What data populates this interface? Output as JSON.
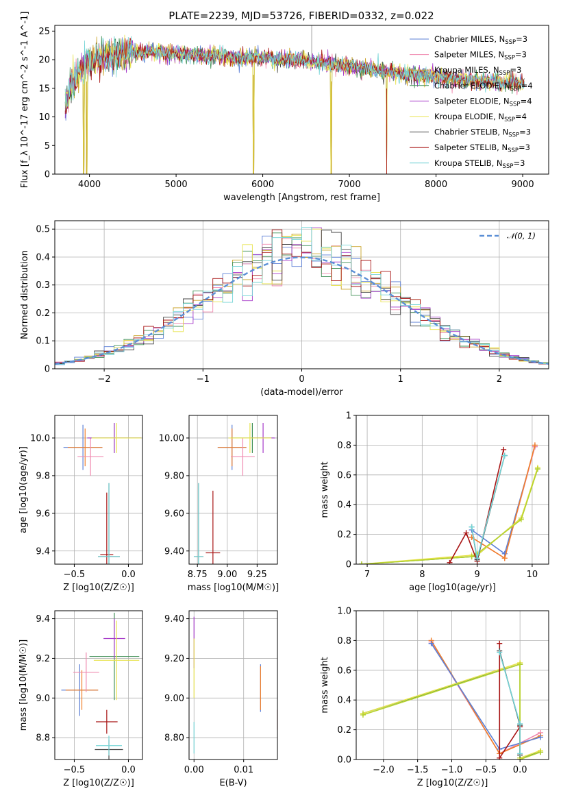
{
  "figure_title": "PLATE=2239, MJD=53726, FIBERID=0332, z=0.022",
  "colors": {
    "Chabrier MILES": "#5b7fd6",
    "Salpeter MILES": "#f08ab0",
    "Kroupa MILES": "#c9a227",
    "Chabrier ELODIE": "#3f8f55",
    "Salpeter ELODIE": "#a63ac9",
    "Kroupa ELODIE": "#e8e34d",
    "Chabrier STELIB": "#444444",
    "Salpeter STELIB": "#a81414",
    "Kroupa STELIB": "#74d4d6",
    "gaussian": "#5b8fd6",
    "extra_orange": "#f07f2a",
    "extra_lime": "#b7d22c"
  },
  "chart_data": [
    {
      "id": "spectrum",
      "type": "line",
      "title": "PLATE=2239, MJD=53726, FIBERID=0332, z=0.022",
      "xlabel": "wavelength [Angstrom, rest frame]",
      "ylabel": "Flux [f_λ 10^-17 erg cm^-2 s^-1 A^-1]",
      "xlim": [
        3600,
        9300
      ],
      "ylim": [
        0,
        26
      ],
      "xticks": [
        4000,
        5000,
        6000,
        7000,
        8000,
        9000
      ],
      "yticks": [
        0,
        5,
        10,
        15,
        20,
        25
      ],
      "grid": false,
      "legend_position": "top-right",
      "legend": [
        {
          "model": "Chabrier MILES",
          "nssp": "3"
        },
        {
          "model": "Salpeter MILES",
          "nssp": "3"
        },
        {
          "model": "Kroupa MILES",
          "nssp": "3"
        },
        {
          "model": "Chabrier ELODIE",
          "nssp": "4"
        },
        {
          "model": "Salpeter ELODIE",
          "nssp": "4"
        },
        {
          "model": "Kroupa ELODIE",
          "nssp": "4"
        },
        {
          "model": "Chabrier STELIB",
          "nssp": "3"
        },
        {
          "model": "Salpeter STELIB",
          "nssp": "3"
        },
        {
          "model": "Kroupa STELIB",
          "nssp": "3"
        }
      ],
      "continuum": {
        "x": [
          3700,
          3780,
          3850,
          3950,
          4050,
          4150,
          4300,
          4500,
          4700,
          5000,
          5300,
          5600,
          6000,
          6500,
          7000,
          7500,
          8000,
          8500,
          9000
        ],
        "y": [
          10,
          15,
          17,
          19,
          20,
          20.5,
          20.8,
          21.2,
          21.3,
          21.0,
          20.8,
          20.6,
          20.3,
          19.8,
          18.8,
          17.8,
          17.0,
          16.3,
          15.8
        ]
      },
      "dips": [
        {
          "x": 3935,
          "y": 0
        },
        {
          "x": 3969,
          "y": 0
        },
        {
          "x": 5893,
          "y": 0
        },
        {
          "x": 6790,
          "y": 0
        },
        {
          "x": 7430,
          "y": 0
        }
      ],
      "peaks": [
        {
          "x": 6565,
          "y": 26
        }
      ]
    },
    {
      "id": "residuals",
      "type": "histogram",
      "xlabel": "(data-model)/error",
      "ylabel": "Normed distribution",
      "xlim": [
        -2.5,
        2.5
      ],
      "ylim": [
        0,
        0.53
      ],
      "xticks": [
        -2,
        -1,
        0,
        1,
        2
      ],
      "yticks": [
        0.0,
        0.1,
        0.2,
        0.3,
        0.4,
        0.5
      ],
      "grid": true,
      "bin_width": 0.1,
      "legend_position": "top-right",
      "legend": [
        {
          "label": "𝒩(0, 1)"
        }
      ],
      "reference_curve": {
        "name": "𝒩(0, 1)",
        "type": "gaussian",
        "mu": 0,
        "sigma": 1
      }
    },
    {
      "id": "age-vs-metallicity",
      "type": "errorbar",
      "xlabel": "Z [log10(Z/Z☉)]",
      "ylabel": "age [log10(age/yr)]",
      "xlim": [
        -0.68,
        0.13
      ],
      "ylim": [
        9.33,
        10.12
      ],
      "xticks": [
        -0.5,
        0.0
      ],
      "yticks": [
        9.4,
        9.6,
        9.8,
        10.0
      ],
      "grid": true,
      "points": [
        {
          "x": -0.42,
          "y": 9.95,
          "xerr": 0.18,
          "yerr": 0.12,
          "color": "#5b7fd6"
        },
        {
          "x": -0.4,
          "y": 9.95,
          "xerr": 0.16,
          "yerr": 0.1,
          "color": "#f07f2a"
        },
        {
          "x": -0.35,
          "y": 9.9,
          "xerr": 0.12,
          "yerr": 0.1,
          "color": "#f08ab0"
        },
        {
          "x": -0.13,
          "y": 10.0,
          "xerr": 0.25,
          "yerr": 0.08,
          "color": "#3f8f55"
        },
        {
          "x": -0.13,
          "y": 10.0,
          "xerr": 0.25,
          "yerr": 0.08,
          "color": "#a63ac9"
        },
        {
          "x": -0.11,
          "y": 10.0,
          "xerr": 0.23,
          "yerr": 0.08,
          "color": "#e8e34d"
        },
        {
          "x": -0.2,
          "y": 9.38,
          "xerr": 0.06,
          "yerr": 0.33,
          "color": "#a81414"
        },
        {
          "x": -0.18,
          "y": 9.37,
          "xerr": 0.1,
          "yerr": 0.39,
          "color": "#444444"
        },
        {
          "x": -0.18,
          "y": 9.37,
          "xerr": 0.1,
          "yerr": 0.39,
          "color": "#74d4d6"
        }
      ]
    },
    {
      "id": "age-vs-mass",
      "type": "errorbar",
      "xlabel": "mass [log10(M/M☉)]",
      "ylabel": "",
      "xlim": [
        8.68,
        9.42
      ],
      "ylim": [
        9.33,
        10.12
      ],
      "xticks": [
        8.75,
        9.0,
        9.25
      ],
      "yticks": [
        9.4,
        9.6,
        9.8,
        10.0
      ],
      "grid": true,
      "points": [
        {
          "x": 9.04,
          "y": 9.95,
          "xerr": 0.12,
          "yerr": 0.12,
          "color": "#5b7fd6"
        },
        {
          "x": 9.04,
          "y": 9.95,
          "xerr": 0.12,
          "yerr": 0.1,
          "color": "#f07f2a"
        },
        {
          "x": 9.13,
          "y": 9.9,
          "xerr": 0.1,
          "yerr": 0.1,
          "color": "#f08ab0"
        },
        {
          "x": 9.21,
          "y": 10.0,
          "xerr": 0.18,
          "yerr": 0.08,
          "color": "#3f8f55"
        },
        {
          "x": 9.3,
          "y": 10.0,
          "xerr": 0.1,
          "yerr": 0.08,
          "color": "#a63ac9"
        },
        {
          "x": 9.19,
          "y": 10.0,
          "xerr": 0.18,
          "yerr": 0.08,
          "color": "#e8e34d"
        },
        {
          "x": 8.88,
          "y": 9.39,
          "xerr": 0.06,
          "yerr": 0.33,
          "color": "#a81414"
        },
        {
          "x": 8.76,
          "y": 9.37,
          "xerr": 0.04,
          "yerr": 0.39,
          "color": "#444444"
        },
        {
          "x": 8.76,
          "y": 9.37,
          "xerr": 0.04,
          "yerr": 0.39,
          "color": "#74d4d6"
        }
      ]
    },
    {
      "id": "mass-weight-vs-age",
      "type": "line",
      "xlabel": "age [log10(age/yr)]",
      "ylabel": "mass weight",
      "xlim": [
        6.8,
        10.3
      ],
      "ylim": [
        0,
        1.0
      ],
      "xticks": [
        7,
        8,
        9,
        10
      ],
      "yticks": [
        0.0,
        0.2,
        0.4,
        0.6,
        0.8,
        1.0
      ],
      "grid": true,
      "series": [
        {
          "color": "#5b7fd6",
          "x": [
            8.9,
            9.5,
            10.05
          ],
          "y": [
            0.23,
            0.07,
            0.79
          ]
        },
        {
          "color": "#f08ab0",
          "x": [
            8.9,
            9.5,
            10.05
          ],
          "y": [
            0.18,
            0.04,
            0.79
          ]
        },
        {
          "color": "#f07f2a",
          "x": [
            8.9,
            9.5,
            10.05
          ],
          "y": [
            0.18,
            0.04,
            0.8
          ]
        },
        {
          "color": "#3f8f55",
          "x": [
            6.9,
            8.9,
            9.0,
            9.8,
            10.1
          ],
          "y": [
            0.0,
            0.05,
            0.06,
            0.31,
            0.64
          ]
        },
        {
          "color": "#e8e34d",
          "x": [
            6.9,
            8.9,
            9.0,
            9.8,
            10.1
          ],
          "y": [
            0.0,
            0.06,
            0.06,
            0.31,
            0.65
          ]
        },
        {
          "color": "#b7d22c",
          "x": [
            6.9,
            8.9,
            9.0,
            9.8,
            10.1
          ],
          "y": [
            0.0,
            0.05,
            0.07,
            0.3,
            0.64
          ]
        },
        {
          "color": "#a81414",
          "x": [
            8.5,
            8.8,
            9.0,
            9.48
          ],
          "y": [
            0.01,
            0.21,
            0.02,
            0.77
          ]
        },
        {
          "color": "#444444",
          "x": [
            8.9,
            9.0,
            9.5
          ],
          "y": [
            0.25,
            0.03,
            0.73
          ]
        },
        {
          "color": "#74d4d6",
          "x": [
            8.9,
            9.0,
            9.5
          ],
          "y": [
            0.25,
            0.04,
            0.73
          ]
        }
      ]
    },
    {
      "id": "mass-vs-metallicity",
      "type": "errorbar",
      "xlabel": "Z [log10(Z/Z☉)]",
      "ylabel": "mass [log10(M/M☉)]",
      "xlim": [
        -0.68,
        0.13
      ],
      "ylim": [
        8.69,
        9.44
      ],
      "xticks": [
        -0.5,
        0.0
      ],
      "yticks": [
        8.8,
        9.0,
        9.2,
        9.4
      ],
      "grid": true,
      "points": [
        {
          "x": -0.45,
          "y": 9.04,
          "xerr": 0.17,
          "yerr": 0.13,
          "color": "#5b7fd6"
        },
        {
          "x": -0.43,
          "y": 9.04,
          "xerr": 0.15,
          "yerr": 0.1,
          "color": "#f07f2a"
        },
        {
          "x": -0.39,
          "y": 9.13,
          "xerr": 0.12,
          "yerr": 0.1,
          "color": "#f08ab0"
        },
        {
          "x": -0.13,
          "y": 9.21,
          "xerr": 0.23,
          "yerr": 0.22,
          "color": "#3f8f55"
        },
        {
          "x": -0.13,
          "y": 9.3,
          "xerr": 0.1,
          "yerr": 0.1,
          "color": "#a63ac9"
        },
        {
          "x": -0.11,
          "y": 9.19,
          "xerr": 0.21,
          "yerr": 0.2,
          "color": "#e8e34d"
        },
        {
          "x": -0.2,
          "y": 8.88,
          "xerr": 0.1,
          "yerr": 0.06,
          "color": "#a81414"
        },
        {
          "x": -0.18,
          "y": 8.74,
          "xerr": 0.13,
          "yerr": 0.05,
          "color": "#444444"
        },
        {
          "x": -0.18,
          "y": 8.76,
          "xerr": 0.12,
          "yerr": 0.05,
          "color": "#74d4d6"
        }
      ]
    },
    {
      "id": "mass-vs-ebv",
      "type": "errorbar",
      "xlabel": "E(B-V)",
      "ylabel": "",
      "xlim": [
        -0.001,
        0.0168
      ],
      "ylim": [
        8.69,
        9.44
      ],
      "xticks": [
        0.0,
        0.01
      ],
      "yticks": [
        8.8,
        9.0,
        9.2,
        9.4
      ],
      "grid": true,
      "points": [
        {
          "x": 0.0,
          "y": 9.28,
          "xerr": 0,
          "yerr": 0.13,
          "color": "#a63ac9"
        },
        {
          "x": 0.0,
          "y": 9.15,
          "xerr": 0,
          "yerr": 0.15,
          "color": "#e8e34d"
        },
        {
          "x": 0.0,
          "y": 8.8,
          "xerr": 0,
          "yerr": 0.08,
          "color": "#74d4d6"
        },
        {
          "x": 0.0134,
          "y": 9.05,
          "xerr": 0,
          "yerr": 0.12,
          "color": "#5b7fd6"
        },
        {
          "x": 0.0134,
          "y": 9.05,
          "xerr": 0,
          "yerr": 0.11,
          "color": "#f07f2a"
        },
        {
          "x": 0.0168,
          "y": 8.89,
          "xerr": 0,
          "yerr": 0.05,
          "color": "#a81414"
        }
      ]
    },
    {
      "id": "mass-weight-vs-metallicity",
      "type": "line",
      "xlabel": "Z [log10(Z/Z☉)]",
      "ylabel": "mass weight",
      "xlim": [
        -2.4,
        0.42
      ],
      "ylim": [
        0,
        1.0
      ],
      "xticks": [
        -2.0,
        -1.5,
        -1.0,
        -0.5,
        0.0
      ],
      "yticks": [
        0.0,
        0.2,
        0.4,
        0.6,
        0.8,
        1.0
      ],
      "grid": true,
      "series": [
        {
          "color": "#f08ab0",
          "x": [
            -1.3,
            -0.3,
            0.3
          ],
          "y": [
            0.79,
            0.04,
            0.18
          ]
        },
        {
          "color": "#f07f2a",
          "x": [
            -1.3,
            -0.3,
            0.3
          ],
          "y": [
            0.8,
            0.04,
            0.16
          ]
        },
        {
          "color": "#5b7fd6",
          "x": [
            -1.3,
            -0.3,
            0.3
          ],
          "y": [
            0.78,
            0.07,
            0.15
          ]
        },
        {
          "color": "#3f8f55",
          "x": [
            -2.3,
            0.0,
            0.0,
            0.3
          ],
          "y": [
            0.31,
            0.64,
            0.01,
            0.05
          ]
        },
        {
          "color": "#e8e34d",
          "x": [
            -2.3,
            0.0,
            0.0,
            0.3
          ],
          "y": [
            0.31,
            0.65,
            0.01,
            0.06
          ]
        },
        {
          "color": "#b7d22c",
          "x": [
            -2.3,
            0.0,
            0.0,
            0.3
          ],
          "y": [
            0.3,
            0.64,
            0.0,
            0.05
          ]
        },
        {
          "color": "#a81414",
          "x": [
            -0.3,
            -0.3,
            0.0
          ],
          "y": [
            0.78,
            0.01,
            0.22
          ]
        },
        {
          "color": "#444444",
          "x": [
            -0.3,
            0.0,
            0.0
          ],
          "y": [
            0.73,
            0.23,
            0.03
          ]
        },
        {
          "color": "#74d4d6",
          "x": [
            -0.3,
            0.0,
            0.0
          ],
          "y": [
            0.72,
            0.24,
            0.04
          ]
        }
      ]
    }
  ]
}
